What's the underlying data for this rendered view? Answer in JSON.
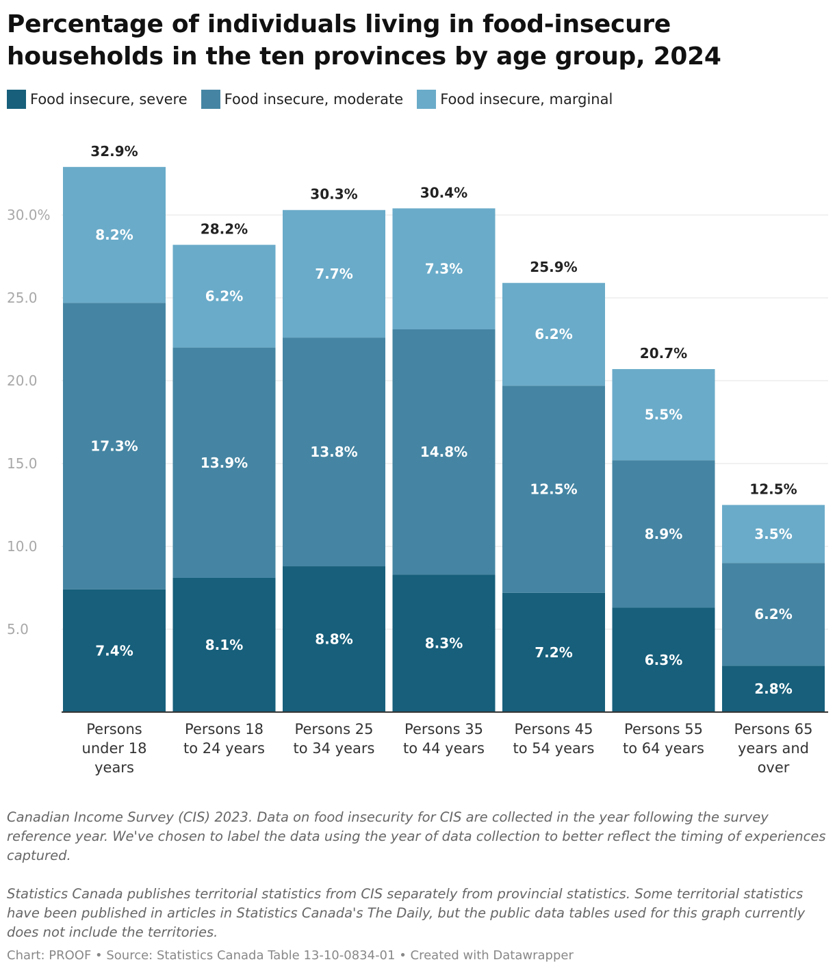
{
  "title": "Percentage of individuals living in food-insecure households in the ten provinces by age group, 2024",
  "notes": [
    "Canadian Income Survey (CIS) 2023. Data on food insecurity for CIS are collected in the year following the survey reference year. We've chosen to label the data using the year of data collection to better reflect the timing of experiences captured.",
    "Statistics Canada publishes territorial statistics from CIS separately from provincial statistics. Some territorial statistics have been published in articles in Statistics Canada's The Daily, but the public data tables used for this graph currently does not include the territories."
  ],
  "footer": "Chart: PROOF • Source: Statistics Canada Table 13-10-0834-01 • Created with Datawrapper",
  "chart_data": {
    "type": "bar",
    "stacked": true,
    "title": "Percentage of individuals living in food-insecure households in the ten provinces by age group, 2024",
    "categories": [
      [
        "Persons",
        "under 18",
        "years"
      ],
      [
        "Persons 18",
        "to 24 years"
      ],
      [
        "Persons 25",
        "to 34 years"
      ],
      [
        "Persons 35",
        "to 44 years"
      ],
      [
        "Persons 45",
        "to 54 years"
      ],
      [
        "Persons 55",
        "to 64 years"
      ],
      [
        "Persons 65",
        "years and",
        "over"
      ]
    ],
    "series": [
      {
        "name": "Food insecure, severe",
        "color": "#175f7b",
        "values": [
          7.4,
          8.1,
          8.8,
          8.3,
          7.2,
          6.3,
          2.8
        ]
      },
      {
        "name": "Food insecure, moderate",
        "color": "#4585a3",
        "values": [
          17.3,
          13.9,
          13.8,
          14.8,
          12.5,
          8.9,
          6.2
        ]
      },
      {
        "name": "Food insecure, marginal",
        "color": "#6aabc9",
        "values": [
          8.2,
          6.2,
          7.7,
          7.3,
          6.2,
          5.5,
          3.5
        ]
      }
    ],
    "totals": [
      "32.9%",
      "28.2%",
      "30.3%",
      "30.4%",
      "25.9%",
      "20.7%",
      "12.5%"
    ],
    "yticks": [
      "5.0",
      "10.0",
      "15.0",
      "20.0",
      "25.0",
      "30.0%"
    ],
    "ylim": [
      0,
      35
    ],
    "grid": true,
    "legend_position": "top-left"
  }
}
